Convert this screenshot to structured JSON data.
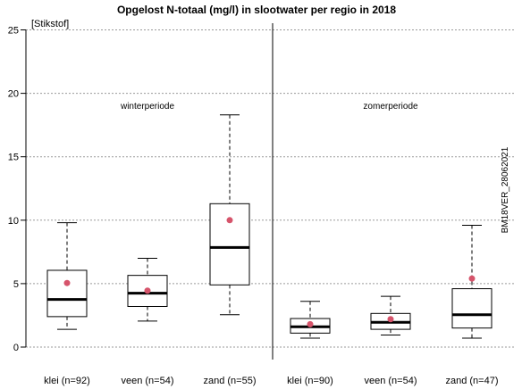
{
  "chart_data": {
    "type": "boxplot",
    "title": "Opgelost N-totaal (mg/l) in slootwater per regio in 2018",
    "ylabel": "[Stikstof]",
    "ylim": [
      0,
      25
    ],
    "yticks": [
      "0",
      "5",
      "10",
      "15",
      "20",
      "25"
    ],
    "grid": true,
    "watermark": "BM18VER_28062021",
    "period_labels": [
      "winterperiode",
      "zomerperiode"
    ],
    "categories": [
      "klei (n=92)",
      "veen (n=54)",
      "zand (n=55)",
      "klei (n=90)",
      "veen (n=54)",
      "zand (n=47)"
    ],
    "boxes": [
      {
        "period": "winterperiode",
        "category": "klei (n=92)",
        "whisker_low": 1.4,
        "q1": 2.4,
        "median": 3.75,
        "q3": 6.05,
        "whisker_high": 9.8,
        "mean": 5.05
      },
      {
        "period": "winterperiode",
        "category": "veen (n=54)",
        "whisker_low": 2.05,
        "q1": 3.2,
        "median": 4.25,
        "q3": 5.65,
        "whisker_high": 7.0,
        "mean": 4.45
      },
      {
        "period": "winterperiode",
        "category": "zand (n=55)",
        "whisker_low": 2.55,
        "q1": 4.9,
        "median": 7.85,
        "q3": 11.3,
        "whisker_high": 18.3,
        "mean": 10.0
      },
      {
        "period": "zomerperiode",
        "category": "klei (n=90)",
        "whisker_low": 0.7,
        "q1": 1.1,
        "median": 1.6,
        "q3": 2.25,
        "whisker_high": 3.6,
        "mean": 1.8
      },
      {
        "period": "zomerperiode",
        "category": "veen (n=54)",
        "whisker_low": 0.95,
        "q1": 1.4,
        "median": 1.95,
        "q3": 2.65,
        "whisker_high": 4.0,
        "mean": 2.2
      },
      {
        "period": "zomerperiode",
        "category": "zand (n=47)",
        "whisker_low": 0.7,
        "q1": 1.5,
        "median": 2.55,
        "q3": 4.6,
        "whisker_high": 9.6,
        "mean": 5.4
      }
    ],
    "colors": {
      "mean_point": "#d6546b",
      "box_fill": "#ffffff",
      "line": "#000000"
    }
  }
}
